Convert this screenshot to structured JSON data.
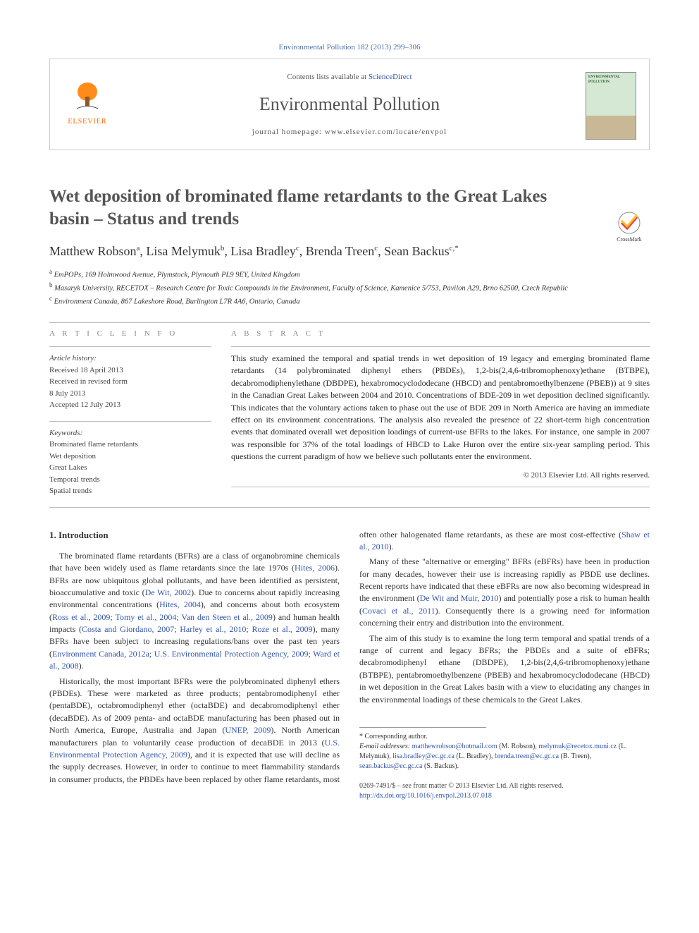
{
  "citation": "Environmental Pollution 182 (2013) 299–306",
  "header": {
    "provider_prefix": "Contents lists available at ",
    "provider_link": "ScienceDirect",
    "journal_name": "Environmental Pollution",
    "homepage_prefix": "journal homepage: ",
    "homepage_url": "www.elsevier.com/locate/envpol",
    "publisher_logo_text": "ELSEVIER",
    "cover_label": "ENVIRONMENTAL POLLUTION"
  },
  "crossmark_label": "CrossMark",
  "title": "Wet deposition of brominated flame retardants to the Great Lakes basin – Status and trends",
  "authors_html": "Matthew Robson<sup>a</sup>, Lisa Melymuk<sup>b</sup>, Lisa Bradley<sup>c</sup>, Brenda Treen<sup>c</sup>, Sean Backus<sup>c,*</sup>",
  "affiliations": [
    {
      "sup": "a",
      "text": "EmPOPs, 169 Holmwood Avenue, Plymstock, Plymouth PL9 9EY, United Kingdom"
    },
    {
      "sup": "b",
      "text": "Masaryk University, RECETOX – Research Centre for Toxic Compounds in the Environment, Faculty of Science, Kamenice 5/753, Pavilon A29, Brno 62500, Czech Republic"
    },
    {
      "sup": "c",
      "text": "Environment Canada, 867 Lakeshore Road, Burlington L7R 4A6, Ontario, Canada"
    }
  ],
  "article_info": {
    "heading": "A R T I C L E   I N F O",
    "history_label": "Article history:",
    "history": [
      "Received 18 April 2013",
      "Received in revised form",
      "8 July 2013",
      "Accepted 12 July 2013"
    ],
    "keywords_label": "Keywords:",
    "keywords": [
      "Brominated flame retardants",
      "Wet deposition",
      "Great Lakes",
      "Temporal trends",
      "Spatial trends"
    ]
  },
  "abstract": {
    "heading": "A B S T R A C T",
    "text": "This study examined the temporal and spatial trends in wet deposition of 19 legacy and emerging brominated flame retardants (14 polybrominated diphenyl ethers (PBDEs), 1,2-bis(2,4,6-tribromophenoxy)ethane (BTBPE), decabromodiphenylethane (DBDPE), hexabromocyclododecane (HBCD) and pentabromoethylbenzene (PBEB)) at 9 sites in the Canadian Great Lakes between 2004 and 2010. Concentrations of BDE-209 in wet deposition declined significantly. This indicates that the voluntary actions taken to phase out the use of BDE 209 in North America are having an immediate effect on its environment concentrations. The analysis also revealed the presence of 22 short-term high concentration events that dominated overall wet deposition loadings of current-use BFRs to the lakes. For instance, one sample in 2007 was responsible for 37% of the total loadings of HBCD to Lake Huron over the entire six-year sampling period. This questions the current paradigm of how we believe such pollutants enter the environment.",
    "copyright": "© 2013 Elsevier Ltd. All rights reserved."
  },
  "body": {
    "section_heading": "1. Introduction",
    "paragraphs": [
      "The brominated flame retardants (BFRs) are a class of organobromine chemicals that have been widely used as flame retardants since the late 1970s (Hites, 2006). BFRs are now ubiquitous global pollutants, and have been identified as persistent, bioaccumulative and toxic (De Wit, 2002). Due to concerns about rapidly increasing environmental concentrations (Hites, 2004), and concerns about both ecosystem (Ross et al., 2009; Tomy et al., 2004; Van den Steen et al., 2009) and human health impacts (Costa and Giordano, 2007; Harley et al., 2010; Roze et al., 2009), many BFRs have been subject to increasing regulations/bans over the past ten years (Environment Canada, 2012a; U.S. Environmental Protection Agency, 2009; Ward et al., 2008).",
      "Historically, the most important BFRs were the polybrominated diphenyl ethers (PBDEs). These were marketed as three products; pentabromodiphenyl ether (pentaBDE), octabromodiphenyl ether (octaBDE) and decabromodiphenyl ether (decaBDE). As of 2009 penta- and octaBDE manufacturing has been phased out in North America, Europe, Australia and Japan (UNEP, 2009). North American manufacturers plan to voluntarily cease production of decaBDE in 2013 (U.S. Environmental Protection Agency, 2009), and it is expected that use will decline as the supply decreases. However, in order to continue to meet flammability standards in consumer products, the PBDEs have been replaced by other flame retardants, most often other halogenated flame retardants, as these are most cost-effective (Shaw et al., 2010).",
      "Many of these \"alternative or emerging\" BFRs (eBFRs) have been in production for many decades, however their use is increasing rapidly as PBDE use declines. Recent reports have indicated that these eBFRs are now also becoming widespread in the environment (De Wit and Muir, 2010) and potentially pose a risk to human health (Covaci et al., 2011). Consequently there is a growing need for information concerning their entry and distribution into the environment.",
      "The aim of this study is to examine the long term temporal and spatial trends of a range of current and legacy BFRs; the PBDEs and a suite of eBFRs; decabromodiphenyl ethane (DBDPE), 1,2-bis(2,4,6-tribromophenoxy)ethane (BTBPE), pentabromoethylbenzene (PBEB) and hexabromocyclododecane (HBCD) in wet deposition in the Great Lakes basin with a view to elucidating any changes in the environmental loadings of these chemicals to the Great Lakes."
    ]
  },
  "footnotes": {
    "corresponding": "* Corresponding author.",
    "emails_label": "E-mail addresses:",
    "emails": "matthewrobson@hotmail.com (M. Robson), melymuk@recetox.muni.cz (L. Melymuk), lisa.bradley@ec.gc.ca (L. Bradley), brenda.treen@ec.gc.ca (B. Treen), sean.backus@ec.gc.ca (S. Backus)."
  },
  "bottom": {
    "line1": "0269-7491/$ – see front matter © 2013 Elsevier Ltd. All rights reserved.",
    "doi": "http://dx.doi.org/10.1016/j.envpol.2013.07.018"
  },
  "colors": {
    "link": "#3355aa",
    "logo_orange": "#ff6b00",
    "text": "#333333",
    "rule": "#bbbbbb"
  }
}
